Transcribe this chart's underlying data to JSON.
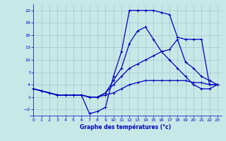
{
  "xlabel": "Graphe des températures (°c)",
  "bg_color": "#c8e8e8",
  "grid_color": "#a0c8c8",
  "line_color": "#0000bb",
  "xlim": [
    -0.5,
    23.5
  ],
  "ylim": [
    -3.5,
    23.5
  ],
  "xticks": [
    0,
    1,
    2,
    3,
    4,
    5,
    6,
    7,
    8,
    9,
    10,
    11,
    12,
    13,
    14,
    15,
    16,
    17,
    18,
    19,
    20,
    21,
    22,
    23
  ],
  "yticks": [
    -2,
    1,
    4,
    7,
    10,
    13,
    16,
    19,
    22
  ],
  "line1_x": [
    0,
    1,
    2,
    3,
    4,
    5,
    6,
    7,
    8,
    9,
    10,
    11,
    12,
    13,
    14,
    15,
    16,
    17,
    18,
    19,
    20,
    21,
    22,
    23
  ],
  "line1_y": [
    3,
    2.5,
    2,
    1.5,
    1.5,
    1.5,
    1.5,
    1,
    1,
    1.5,
    2,
    3,
    4,
    4.5,
    5,
    5,
    5,
    5,
    5,
    5,
    4.5,
    4.5,
    4,
    4
  ],
  "line2_x": [
    0,
    1,
    2,
    3,
    4,
    5,
    6,
    7,
    8,
    9,
    10,
    11,
    12,
    13,
    14,
    15,
    16,
    17,
    18,
    19,
    20,
    21,
    22,
    23
  ],
  "line2_y": [
    3,
    2.5,
    2,
    1.5,
    1.5,
    1.5,
    1.5,
    1,
    1,
    2,
    4,
    6,
    8,
    9,
    10,
    11,
    12,
    12.5,
    15,
    9.5,
    8,
    6,
    5,
    4
  ],
  "line3_x": [
    0,
    1,
    2,
    3,
    4,
    5,
    6,
    7,
    8,
    9,
    10,
    11,
    12,
    13,
    14,
    15,
    16,
    17,
    18,
    19,
    20,
    21,
    22,
    23
  ],
  "line3_y": [
    3,
    2.5,
    2,
    1.5,
    1.5,
    1.5,
    1.5,
    -3,
    -2.5,
    -1.5,
    6,
    12,
    22,
    22,
    22,
    22,
    21.5,
    21,
    15.5,
    15,
    15,
    15,
    4,
    4
  ],
  "line4_x": [
    0,
    1,
    2,
    3,
    4,
    5,
    6,
    7,
    8,
    9,
    10,
    11,
    12,
    13,
    14,
    15,
    16,
    17,
    18,
    19,
    20,
    21,
    22,
    23
  ],
  "line4_y": [
    3,
    2.5,
    2,
    1.5,
    1.5,
    1.5,
    1.5,
    1,
    1,
    2,
    5,
    8,
    14,
    17,
    18,
    15,
    12,
    10,
    8,
    6,
    4,
    3,
    3,
    4
  ]
}
